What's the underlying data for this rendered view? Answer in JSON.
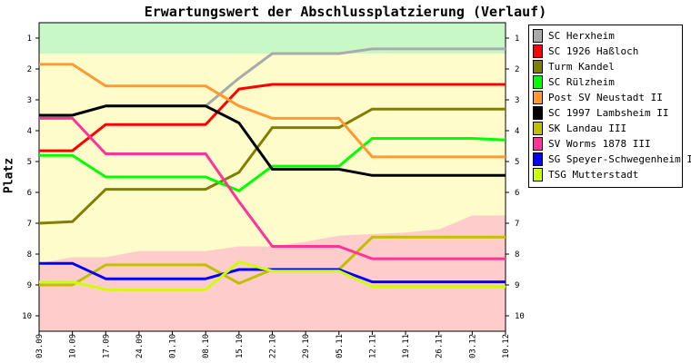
{
  "chart_data": {
    "type": "line",
    "title": "Erwartungswert der Abschlussplatzierung (Verlauf)",
    "ylabel": "Platz",
    "xlabel": "",
    "x": [
      "03.09",
      "10.09",
      "17.09",
      "24.09",
      "01.10",
      "08.10",
      "15.10",
      "22.10",
      "29.10",
      "05.11",
      "12.11",
      "19.11",
      "26.11",
      "03.12",
      "10.12"
    ],
    "ylim": [
      0.5,
      10.5
    ],
    "y_inverted": true,
    "y_ticks": [
      1,
      2,
      3,
      4,
      5,
      6,
      7,
      8,
      9,
      10
    ],
    "grid": false,
    "legend_position": "top-right",
    "zones": [
      {
        "from": 0.5,
        "to": 1.5,
        "color": "#c8f8c8"
      },
      {
        "from": 1.5,
        "to": 8.5,
        "color": "#fffccc"
      },
      {
        "from": 8.5,
        "to": 10.5,
        "color": "#ffcccc"
      }
    ],
    "pink_envelope": [
      8.3,
      8.1,
      8.1,
      7.9,
      7.9,
      7.9,
      7.75,
      7.75,
      7.6,
      7.4,
      7.35,
      7.3,
      7.2,
      6.75,
      6.75
    ],
    "series": [
      {
        "name": "SC Herxheim",
        "color": "#aaaaaa",
        "values": [
          3.6,
          3.5,
          3.2,
          3.2,
          3.2,
          3.2,
          2.3,
          1.5,
          1.5,
          1.5,
          1.35,
          1.35,
          1.35,
          1.35,
          1.35
        ]
      },
      {
        "name": "SC 1926 Haßloch",
        "color": "#ff0000",
        "values": [
          4.65,
          4.65,
          3.8,
          3.8,
          3.8,
          3.8,
          2.65,
          2.5,
          2.5,
          2.5,
          2.5,
          2.5,
          2.5,
          2.5,
          2.5
        ]
      },
      {
        "name": "Turm Kandel",
        "color": "#808000",
        "values": [
          7.0,
          6.95,
          5.9,
          5.9,
          5.9,
          5.9,
          5.35,
          3.9,
          3.9,
          3.9,
          3.3,
          3.3,
          3.3,
          3.3,
          3.3
        ]
      },
      {
        "name": "SC Rülzheim",
        "color": "#00ff00",
        "values": [
          4.8,
          4.8,
          5.5,
          5.5,
          5.5,
          5.5,
          5.95,
          5.15,
          5.15,
          5.15,
          4.25,
          4.25,
          4.25,
          4.25,
          4.3
        ]
      },
      {
        "name": "Post SV Neustadt II",
        "color": "#ff9933",
        "values": [
          1.85,
          1.85,
          2.55,
          2.55,
          2.55,
          2.55,
          3.2,
          3.6,
          3.6,
          3.6,
          4.85,
          4.85,
          4.85,
          4.85,
          4.85
        ]
      },
      {
        "name": "SC 1997 Lambsheim II",
        "color": "#000000",
        "values": [
          3.5,
          3.5,
          3.2,
          3.2,
          3.2,
          3.2,
          3.75,
          5.25,
          5.25,
          5.25,
          5.45,
          5.45,
          5.45,
          5.45,
          5.45
        ]
      },
      {
        "name": "SK Landau III",
        "color": "#c0c000",
        "values": [
          9.0,
          9.0,
          8.35,
          8.35,
          8.35,
          8.35,
          8.95,
          8.5,
          8.5,
          8.5,
          7.45,
          7.45,
          7.45,
          7.45,
          7.45
        ]
      },
      {
        "name": "SV Worms 1878 III",
        "color": "#ff3399",
        "values": [
          3.6,
          3.6,
          4.75,
          4.75,
          4.75,
          4.75,
          6.3,
          7.75,
          7.75,
          7.75,
          8.15,
          8.15,
          8.15,
          8.15,
          8.15
        ]
      },
      {
        "name": "SG Speyer-Schwegenheim II",
        "color": "#0000ff",
        "values": [
          8.3,
          8.3,
          8.8,
          8.8,
          8.8,
          8.8,
          8.5,
          8.5,
          8.5,
          8.5,
          8.9,
          8.9,
          8.9,
          8.9,
          8.9
        ]
      },
      {
        "name": "TSG Mutterstadt",
        "color": "#ccff00",
        "values": [
          8.9,
          8.9,
          9.15,
          9.15,
          9.15,
          9.15,
          8.25,
          8.55,
          8.55,
          8.55,
          9.05,
          9.05,
          9.05,
          9.05,
          9.05
        ]
      }
    ]
  }
}
